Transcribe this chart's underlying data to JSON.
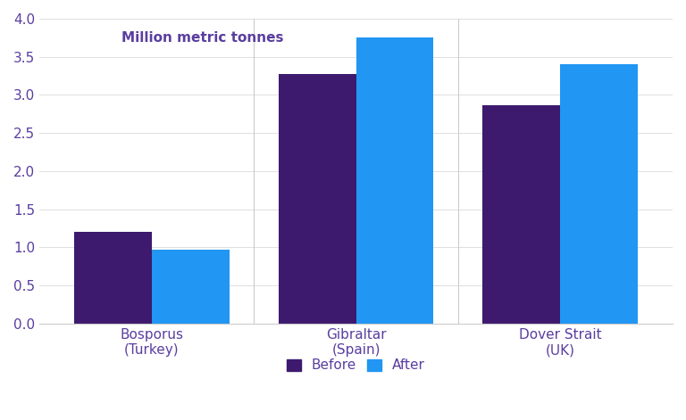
{
  "categories": [
    "Bosporus\n(Turkey)",
    "Gibraltar\n(Spain)",
    "Dover Strait\n(UK)"
  ],
  "before_values": [
    1.2,
    3.27,
    2.87
  ],
  "after_values": [
    0.97,
    3.76,
    3.4
  ],
  "before_color": "#3d1a6e",
  "after_color": "#2196F3",
  "ylabel": "Million metric tonnes",
  "ylim": [
    0,
    4.0
  ],
  "yticks": [
    0.0,
    0.5,
    1.0,
    1.5,
    2.0,
    2.5,
    3.0,
    3.5,
    4.0
  ],
  "legend_before": "Before",
  "legend_after": "After",
  "bar_width": 0.38,
  "background_color": "#ffffff",
  "tick_color": "#5a3ea0",
  "label_color": "#5a3ea0",
  "ylabel_fontsize": 11,
  "tick_fontsize": 11,
  "legend_fontsize": 11,
  "xlabel_fontsize": 11
}
